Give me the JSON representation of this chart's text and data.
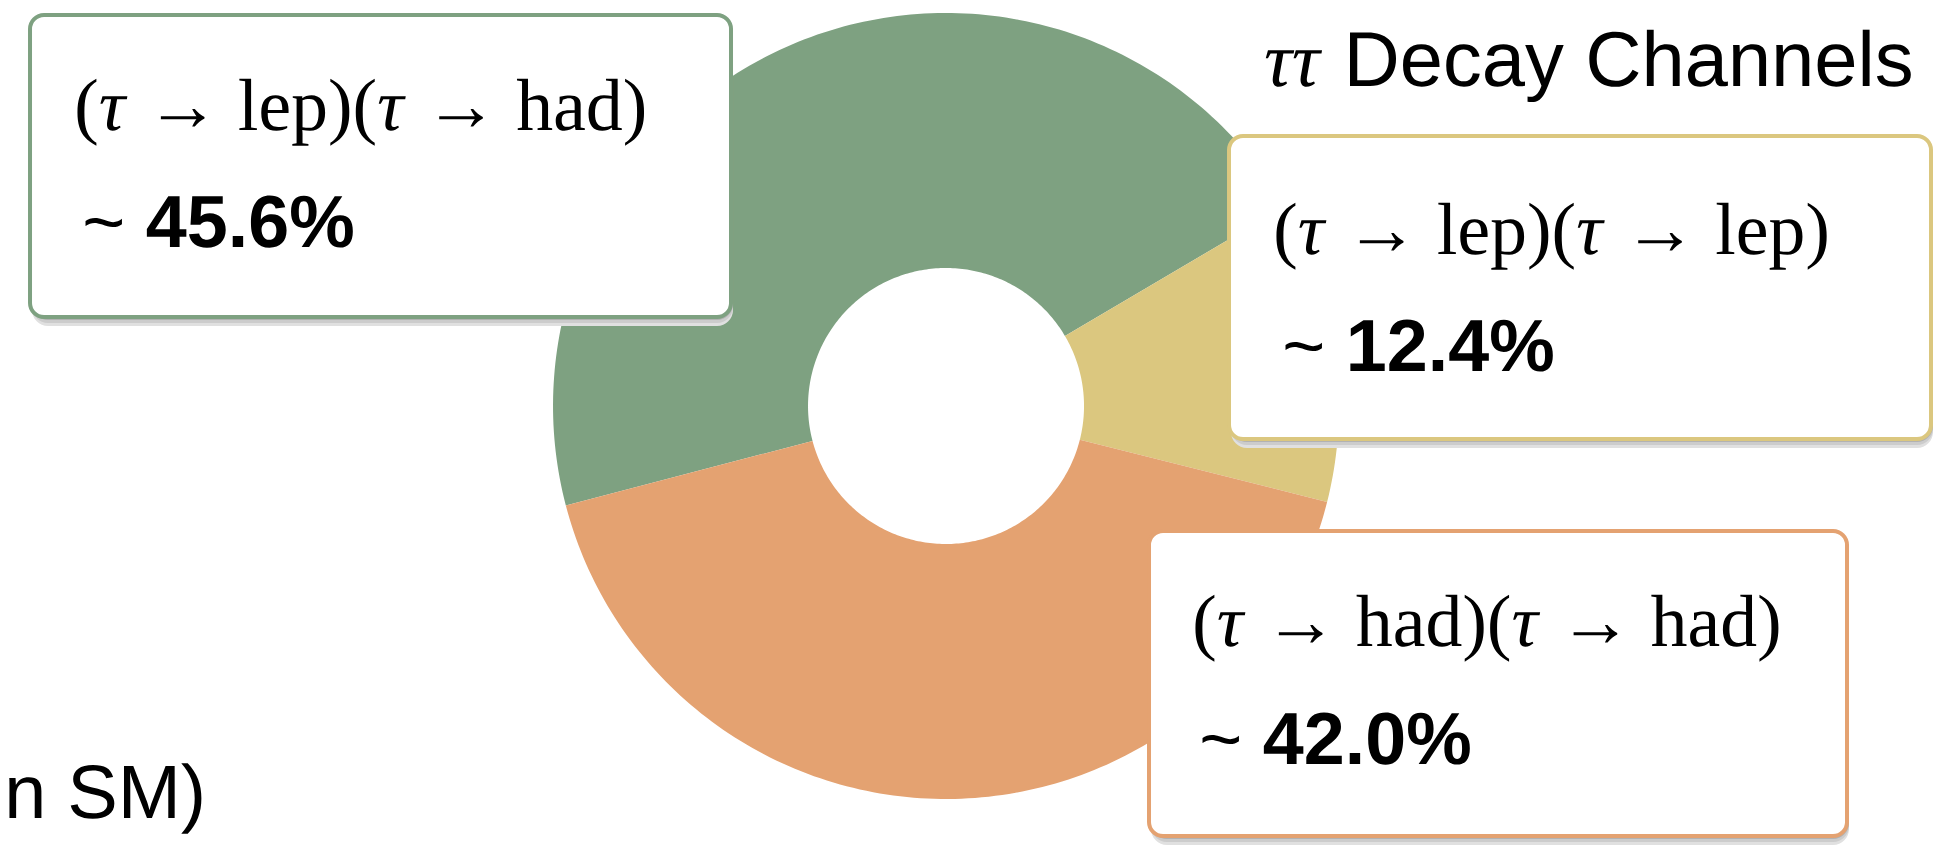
{
  "chart_data": {
    "type": "donut",
    "title": "*ττ* Decay Channels",
    "categories": [
      "(*τ* → lep)(*τ* → had)",
      "(*τ* → lep)(*τ* → lep)",
      "(*τ* → had)(*τ* → had)"
    ],
    "values": [
      45.6,
      12.4,
      42.0
    ],
    "colors": [
      "#7ea181",
      "#dbc77f",
      "#e4a271"
    ],
    "value_labels": [
      "~ **45.6%**",
      "~ **12.4%**",
      "~ **42.0%**"
    ],
    "annotations": [
      "n SM)"
    ]
  }
}
